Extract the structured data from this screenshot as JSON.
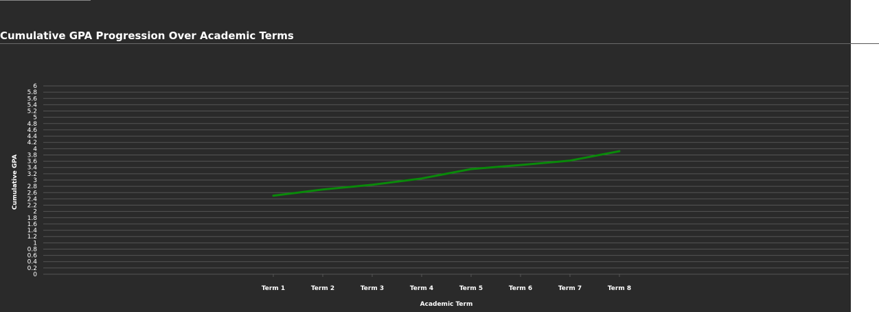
{
  "page": {
    "title": "Cumulative GPA Progression Over Academic Terms"
  },
  "chart_data": {
    "type": "line",
    "title": "Cumulative GPA Progression Over Academic Terms",
    "xlabel": "Academic Term",
    "ylabel": "Cumulative GPA",
    "categories": [
      "Term 1",
      "Term 2",
      "Term 3",
      "Term 4",
      "Term 5",
      "Term 6",
      "Term 7",
      "Term 8"
    ],
    "series": [
      {
        "values": [
          2.5,
          2.7,
          2.85,
          3.05,
          3.35,
          3.48,
          3.62,
          3.92
        ],
        "color": "#0a8a0a"
      }
    ],
    "ylim": [
      0,
      6
    ],
    "ytick_step": 0.2,
    "yticks": [
      "0",
      "0.2",
      "0.4",
      "0.6",
      "0.8",
      "1",
      "1.2",
      "1.4",
      "1.6",
      "1.8",
      "2",
      "2.2",
      "2.4",
      "2.6",
      "2.8",
      "3",
      "3.2",
      "3.4",
      "3.6",
      "3.8",
      "4",
      "4.2",
      "4.4",
      "4.6",
      "4.8",
      "5",
      "5.2",
      "5.4",
      "5.6",
      "5.8",
      "6"
    ],
    "grid": true,
    "background": "#2a2a2a",
    "grid_color": "#555555",
    "text_color": "#ffffff"
  }
}
